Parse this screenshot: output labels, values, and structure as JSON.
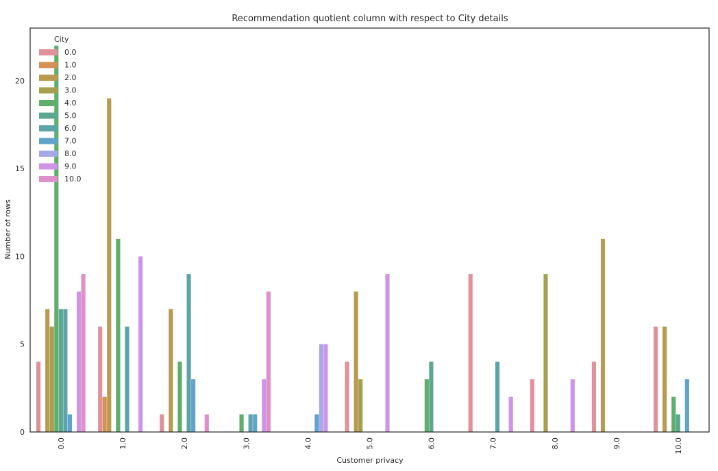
{
  "chart_data": {
    "type": "bar",
    "title": "Recommendation quotient column with respect to City details",
    "xlabel": "Customer privacy",
    "ylabel": "Number of rows",
    "ylim": [
      0,
      23
    ],
    "yticks": [
      0,
      5,
      10,
      15,
      20
    ],
    "categories": [
      "0.0",
      "1.0",
      "2.0",
      "3.0",
      "4.0",
      "5.0",
      "6.0",
      "7.0",
      "8.0",
      "9.0",
      "10.0"
    ],
    "legend": {
      "title": "City",
      "placement": "top-left"
    },
    "grid": false,
    "series": [
      {
        "name": "0.0",
        "color": "#e1919b",
        "values": [
          4,
          6,
          1,
          0,
          0,
          4,
          0,
          9,
          3,
          4,
          6
        ]
      },
      {
        "name": "1.0",
        "color": "#d69154",
        "values": [
          0,
          2,
          0,
          0,
          0,
          0,
          0,
          0,
          0,
          0,
          0
        ]
      },
      {
        "name": "2.0",
        "color": "#b89a50",
        "values": [
          7,
          19,
          7,
          0,
          0,
          8,
          0,
          0,
          0,
          11,
          6
        ]
      },
      {
        "name": "3.0",
        "color": "#a5a04f",
        "values": [
          6,
          0,
          0,
          0,
          0,
          3,
          0,
          0,
          9,
          0,
          0
        ]
      },
      {
        "name": "4.0",
        "color": "#5fae6c",
        "values": [
          22,
          11,
          4,
          1,
          0,
          0,
          3,
          0,
          0,
          0,
          2
        ]
      },
      {
        "name": "5.0",
        "color": "#5aa98f",
        "values": [
          7,
          0,
          0,
          0,
          0,
          0,
          4,
          0,
          0,
          0,
          1
        ]
      },
      {
        "name": "6.0",
        "color": "#5ba5aa",
        "values": [
          7,
          6,
          9,
          1,
          0,
          0,
          0,
          4,
          0,
          0,
          0
        ]
      },
      {
        "name": "7.0",
        "color": "#61a4cb",
        "values": [
          1,
          0,
          3,
          1,
          1,
          0,
          0,
          0,
          0,
          0,
          3
        ]
      },
      {
        "name": "8.0",
        "color": "#a7a8e6",
        "values": [
          0,
          0,
          0,
          0,
          5,
          0,
          0,
          0,
          0,
          0,
          0
        ]
      },
      {
        "name": "9.0",
        "color": "#cf94e8",
        "values": [
          8,
          10,
          0,
          3,
          5,
          9,
          0,
          2,
          3,
          0,
          0
        ]
      },
      {
        "name": "10.0",
        "color": "#df8fc9",
        "values": [
          9,
          0,
          1,
          8,
          0,
          0,
          0,
          0,
          0,
          0,
          0
        ]
      }
    ]
  }
}
